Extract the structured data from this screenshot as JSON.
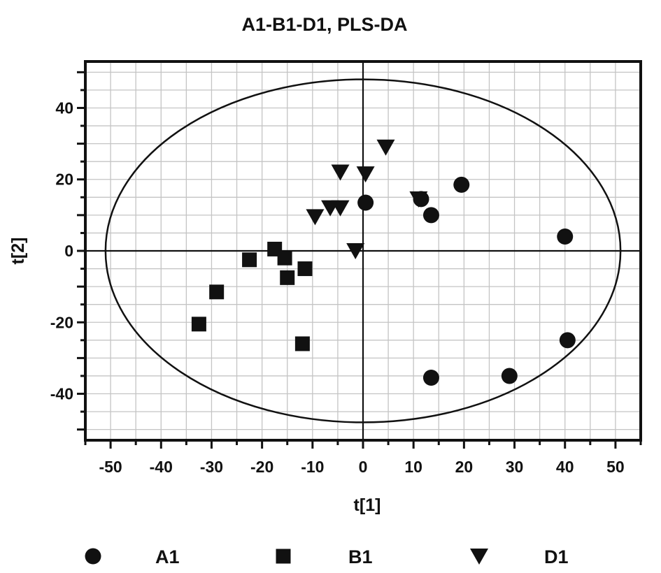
{
  "chart_data": {
    "type": "scatter",
    "title": "A1-B1-D1, PLS-DA",
    "xlabel": "t[1]",
    "ylabel": "t[2]",
    "xlim": [
      -55,
      55
    ],
    "ylim": [
      -53,
      53
    ],
    "xticks": [
      -50,
      -40,
      -30,
      -20,
      -10,
      0,
      10,
      20,
      30,
      40,
      50
    ],
    "yticks": [
      40,
      20,
      0,
      -20,
      -40
    ],
    "grid": true,
    "grid_step": 5,
    "legend_position": "bottom",
    "ellipse": {
      "center": [
        0,
        0
      ],
      "rx": 51,
      "ry": 48
    },
    "reference_lines": {
      "x": 0,
      "y": 0
    },
    "series": [
      {
        "name": "A1",
        "marker": "circle",
        "color": "#111111",
        "points": [
          {
            "x": 0.5,
            "y": 13.5
          },
          {
            "x": 11.5,
            "y": 14.5
          },
          {
            "x": 13.5,
            "y": 10
          },
          {
            "x": 19.5,
            "y": 18.5
          },
          {
            "x": 40,
            "y": 4
          },
          {
            "x": 40.5,
            "y": -25
          },
          {
            "x": 29,
            "y": -35
          },
          {
            "x": 13.5,
            "y": -35.5
          }
        ]
      },
      {
        "name": "B1",
        "marker": "square",
        "color": "#111111",
        "points": [
          {
            "x": -17.5,
            "y": 0.5
          },
          {
            "x": -22.5,
            "y": -2.5
          },
          {
            "x": -15.5,
            "y": -2
          },
          {
            "x": -11.5,
            "y": -5
          },
          {
            "x": -15,
            "y": -7.5
          },
          {
            "x": -29,
            "y": -11.5
          },
          {
            "x": -32.5,
            "y": -20.5
          },
          {
            "x": -12,
            "y": -26
          }
        ]
      },
      {
        "name": "D1",
        "marker": "triangle-down",
        "color": "#111111",
        "points": [
          {
            "x": 4.5,
            "y": 29
          },
          {
            "x": -4.5,
            "y": 22
          },
          {
            "x": 0.5,
            "y": 21.5
          },
          {
            "x": 11,
            "y": 14.5
          },
          {
            "x": -6.5,
            "y": 12
          },
          {
            "x": -4.5,
            "y": 12
          },
          {
            "x": -9.5,
            "y": 9.5
          },
          {
            "x": -1.5,
            "y": 0
          }
        ]
      }
    ]
  }
}
